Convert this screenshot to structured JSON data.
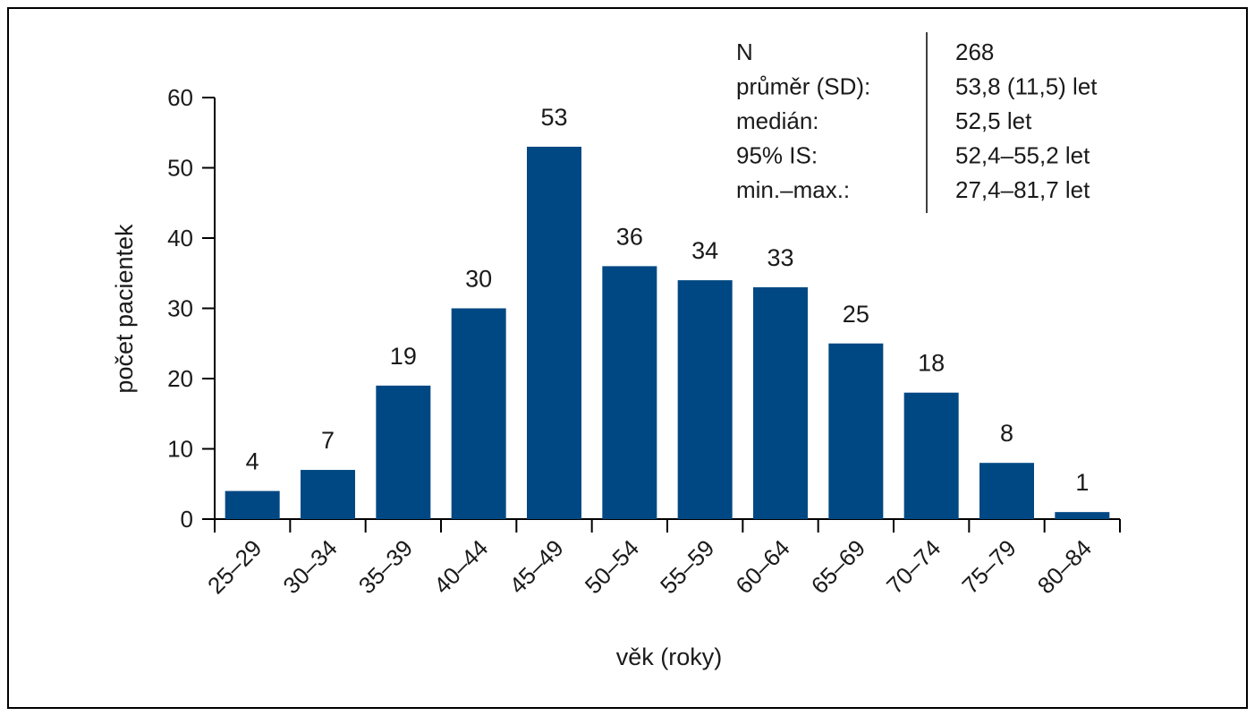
{
  "chart_data": {
    "type": "bar",
    "categories": [
      "25–29",
      "30–34",
      "35–39",
      "40–44",
      "45–49",
      "50–54",
      "55–59",
      "60–64",
      "65–69",
      "70–74",
      "75–79",
      "80–84"
    ],
    "values": [
      4,
      7,
      19,
      30,
      53,
      36,
      34,
      33,
      25,
      18,
      8,
      1
    ],
    "data_labels": [
      "4",
      "7",
      "19",
      "30",
      "53",
      "36",
      "34",
      "33",
      "25",
      "18",
      "8",
      "1"
    ],
    "title": "",
    "xlabel": "věk (roky)",
    "ylabel": "počet pacientek",
    "ylim": [
      0,
      60
    ],
    "yticks": [
      "0",
      "10",
      "20",
      "30",
      "40",
      "50",
      "60"
    ],
    "grid": false,
    "legend": "none",
    "bar_color": "#004883",
    "statistics_table": {
      "placement": "top-right",
      "rows": [
        {
          "label": "N",
          "value": "268"
        },
        {
          "label": "průměr (SD):",
          "value": "53,8 (11,5) let"
        },
        {
          "label": "medián:",
          "value": "52,5 let"
        },
        {
          "label": "95% IS:",
          "value": "52,4–55,2 let"
        },
        {
          "label": "min.–max.:",
          "value": "27,4–81,7 let"
        }
      ]
    }
  }
}
